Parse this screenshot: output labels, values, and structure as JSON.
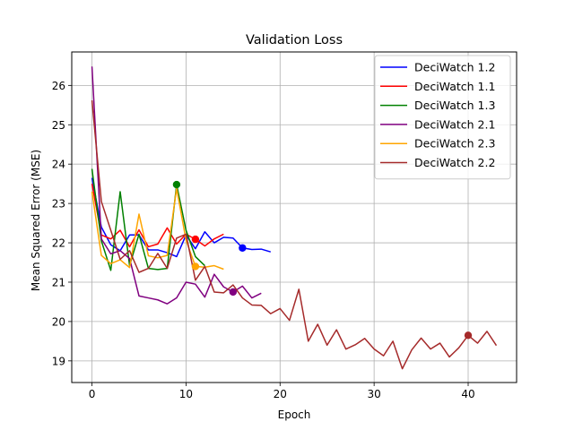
{
  "chart_data": {
    "type": "line",
    "title": "Validation Loss",
    "xlabel": "Epoch",
    "ylabel": "Mean Squared Error (MSE)",
    "xlim": [
      -2.15,
      45.15
    ],
    "ylim": [
      18.45,
      26.85
    ],
    "xticks": [
      0,
      10,
      20,
      30,
      40
    ],
    "yticks": [
      19,
      20,
      21,
      22,
      23,
      24,
      25,
      26
    ],
    "grid": true,
    "legend_position": "top-right",
    "series": [
      {
        "name": "DeciWatch 1.2",
        "color": "#0000ff",
        "x": [
          0,
          1,
          2,
          3,
          4,
          5,
          6,
          7,
          8,
          9,
          10,
          11,
          12,
          13,
          14,
          15,
          16,
          17,
          18,
          19
        ],
        "y": [
          23.65,
          22.4,
          21.95,
          21.8,
          22.2,
          22.2,
          21.82,
          21.82,
          21.75,
          21.65,
          22.2,
          21.85,
          22.28,
          22.0,
          22.14,
          22.12,
          21.87,
          21.83,
          21.84,
          21.77
        ],
        "marker": {
          "x": 16,
          "y": 21.87
        }
      },
      {
        "name": "DeciWatch 1.1",
        "color": "#ff0000",
        "x": [
          0,
          1,
          2,
          3,
          4,
          5,
          6,
          7,
          8,
          9,
          10,
          11,
          12,
          13,
          14
        ],
        "y": [
          23.5,
          22.2,
          22.1,
          22.32,
          21.9,
          22.33,
          21.9,
          21.97,
          22.38,
          21.97,
          22.22,
          22.09,
          21.92,
          22.1,
          22.22
        ],
        "marker": {
          "x": 11,
          "y": 22.09
        }
      },
      {
        "name": "DeciWatch 1.3",
        "color": "#008000",
        "x": [
          0,
          1,
          2,
          3,
          4,
          5,
          6,
          7,
          8,
          9,
          10,
          11,
          12
        ],
        "y": [
          23.88,
          22.05,
          21.3,
          23.3,
          21.42,
          22.22,
          21.35,
          21.32,
          21.35,
          23.48,
          22.32,
          21.65,
          21.42
        ],
        "marker": {
          "x": 9,
          "y": 23.48
        }
      },
      {
        "name": "DeciWatch 2.1",
        "color": "#800080",
        "x": [
          0,
          1,
          2,
          3,
          4,
          5,
          6,
          7,
          8,
          9,
          10,
          11,
          12,
          13,
          14,
          15,
          16,
          17,
          18
        ],
        "y": [
          26.48,
          22.1,
          21.72,
          21.8,
          21.6,
          20.65,
          20.6,
          20.55,
          20.45,
          20.6,
          21.0,
          20.95,
          20.62,
          21.2,
          20.88,
          20.75,
          20.9,
          20.6,
          20.72
        ],
        "marker": {
          "x": 15,
          "y": 20.75
        }
      },
      {
        "name": "DeciWatch 2.3",
        "color": "#ffa500",
        "x": [
          0,
          1,
          2,
          3,
          4,
          5,
          6,
          7,
          8,
          9,
          10,
          11,
          12,
          13,
          14
        ],
        "y": [
          23.3,
          21.68,
          21.47,
          21.57,
          21.37,
          22.73,
          21.67,
          21.62,
          21.68,
          23.38,
          22.07,
          21.4,
          21.38,
          21.42,
          21.33
        ],
        "marker": {
          "x": 11,
          "y": 21.4
        }
      },
      {
        "name": "DeciWatch 2.2",
        "color": "#a52a2a",
        "x": [
          0,
          1,
          2,
          3,
          4,
          5,
          6,
          7,
          8,
          9,
          10,
          11,
          12,
          13,
          14,
          15,
          16,
          17,
          18,
          19,
          20,
          21,
          22,
          23,
          24,
          25,
          26,
          27,
          28,
          29,
          30,
          31,
          32,
          33,
          34,
          35,
          36,
          37,
          38,
          39,
          40,
          41,
          42,
          43
        ],
        "y": [
          25.62,
          23.05,
          22.32,
          21.58,
          21.8,
          21.25,
          21.35,
          21.73,
          21.35,
          22.12,
          22.22,
          21.05,
          21.4,
          20.75,
          20.73,
          20.93,
          20.6,
          20.42,
          20.41,
          20.2,
          20.33,
          20.03,
          20.82,
          19.5,
          19.93,
          19.4,
          19.79,
          19.3,
          19.41,
          19.57,
          19.3,
          19.13,
          19.5,
          18.8,
          19.28,
          19.58,
          19.3,
          19.45,
          19.1,
          19.33,
          19.65,
          19.45,
          19.75,
          19.39
        ],
        "marker": {
          "x": 40,
          "y": 19.65
        }
      }
    ]
  }
}
